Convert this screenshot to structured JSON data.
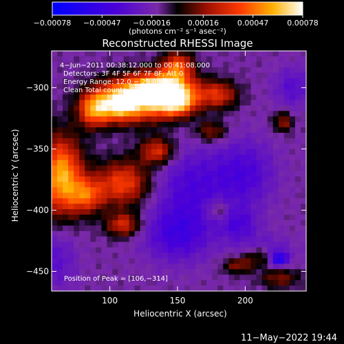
{
  "chart_data": {
    "type": "heatmap",
    "title": "Reconstructed RHESSI Image",
    "xlabel": "Heliocentric X (arcsec)",
    "ylabel": "Heliocentric Y (arcsec)",
    "xlim": [
      57,
      245
    ],
    "ylim": [
      -466,
      -270
    ],
    "xticks": [
      {
        "value": 100,
        "label": "100"
      },
      {
        "value": 150,
        "label": "150"
      },
      {
        "value": 200,
        "label": "200"
      }
    ],
    "yticks": [
      {
        "value": -300,
        "label": "−300"
      },
      {
        "value": -350,
        "label": "−350"
      },
      {
        "value": -400,
        "label": "−400"
      },
      {
        "value": -450,
        "label": "−450"
      }
    ],
    "colorbar": {
      "min": -0.00078,
      "max": 0.00078,
      "ticks": [
        {
          "value": -0.00078,
          "label": "−0.00078"
        },
        {
          "value": -0.00047,
          "label": "−0.00047"
        },
        {
          "value": -0.00016,
          "label": "−0.00016"
        },
        {
          "value": 0.00016,
          "label": "0.00016"
        },
        {
          "value": 0.00047,
          "label": "0.00047"
        },
        {
          "value": 0.00078,
          "label": "0.00078"
        }
      ],
      "unit_label": "(photons cm⁻² s⁻¹ asec⁻²)"
    },
    "annotations": [
      "4−Jun−2011 00:38:12.000 to 00:41:08.000",
      "Detectors: 3F 4F 5F 6F 7F 8F, Att 0",
      "Energy Range: 12.0 − 25.0 keV",
      "Clean    Total counts: 5.90E+03"
    ],
    "peak_label": "Position of Peak = [106,−314]",
    "peak": {
      "x": 106,
      "y": -314
    },
    "blobs": [
      {
        "x": 120,
        "y": -310,
        "sx": 20,
        "sy": 12,
        "amp": 0.00078
      },
      {
        "x": 106,
        "y": -314,
        "sx": 9,
        "sy": 9,
        "amp": 0.0004
      },
      {
        "x": 140,
        "y": -300,
        "sx": 16,
        "sy": 9,
        "amp": 0.0007
      },
      {
        "x": 150,
        "y": -312,
        "sx": 10,
        "sy": 8,
        "amp": 0.0006
      },
      {
        "x": 88,
        "y": -318,
        "sx": 8,
        "sy": 10,
        "amp": 0.00055
      },
      {
        "x": 64,
        "y": -372,
        "sx": 11,
        "sy": 22,
        "amp": 0.00072
      },
      {
        "x": 110,
        "y": -378,
        "sx": 14,
        "sy": 13,
        "amp": 0.0005
      },
      {
        "x": 83,
        "y": -388,
        "sx": 9,
        "sy": 10,
        "amp": 0.00045
      },
      {
        "x": 135,
        "y": -352,
        "sx": 9,
        "sy": 8,
        "amp": 0.00045
      },
      {
        "x": 150,
        "y": -282,
        "sx": 8,
        "sy": 8,
        "amp": 0.0005
      },
      {
        "x": 180,
        "y": -306,
        "sx": 10,
        "sy": 8,
        "amp": 0.00042
      },
      {
        "x": 110,
        "y": -412,
        "sx": 9,
        "sy": 7,
        "amp": 0.00042
      },
      {
        "x": 175,
        "y": -336,
        "sx": 8,
        "sy": 6,
        "amp": 0.0003
      },
      {
        "x": 228,
        "y": -328,
        "sx": 5,
        "sy": 6,
        "amp": 0.0003
      },
      {
        "x": 210,
        "y": -438,
        "sx": 8,
        "sy": 6,
        "amp": 0.00032
      },
      {
        "x": 195,
        "y": -445,
        "sx": 8,
        "sy": 5,
        "amp": 0.0003
      },
      {
        "x": 225,
        "y": -455,
        "sx": 10,
        "sy": 6,
        "amp": 0.00028
      },
      {
        "x": 180,
        "y": -400,
        "sx": 6,
        "sy": 6,
        "amp": 0.00022
      },
      {
        "x": 160,
        "y": -380,
        "sx": 20,
        "sy": 22,
        "amp": -0.00025
      },
      {
        "x": 200,
        "y": -370,
        "sx": 16,
        "sy": 20,
        "amp": -0.00025
      },
      {
        "x": 150,
        "y": -420,
        "sx": 18,
        "sy": 16,
        "amp": -0.0003
      },
      {
        "x": 195,
        "y": -412,
        "sx": 10,
        "sy": 10,
        "amp": -0.00022
      },
      {
        "x": 215,
        "y": -435,
        "sx": 14,
        "sy": 10,
        "amp": -0.0002
      },
      {
        "x": 225,
        "y": -440,
        "sx": 4,
        "sy": 4,
        "amp": -0.00045
      },
      {
        "x": 235,
        "y": -300,
        "sx": 10,
        "sy": 12,
        "amp": -0.0002
      },
      {
        "x": 62,
        "y": -440,
        "sx": 10,
        "sy": 18,
        "amp": -0.00018
      }
    ],
    "grid": false,
    "legend": "none"
  },
  "timestamp": "11−May−2022 19:44"
}
